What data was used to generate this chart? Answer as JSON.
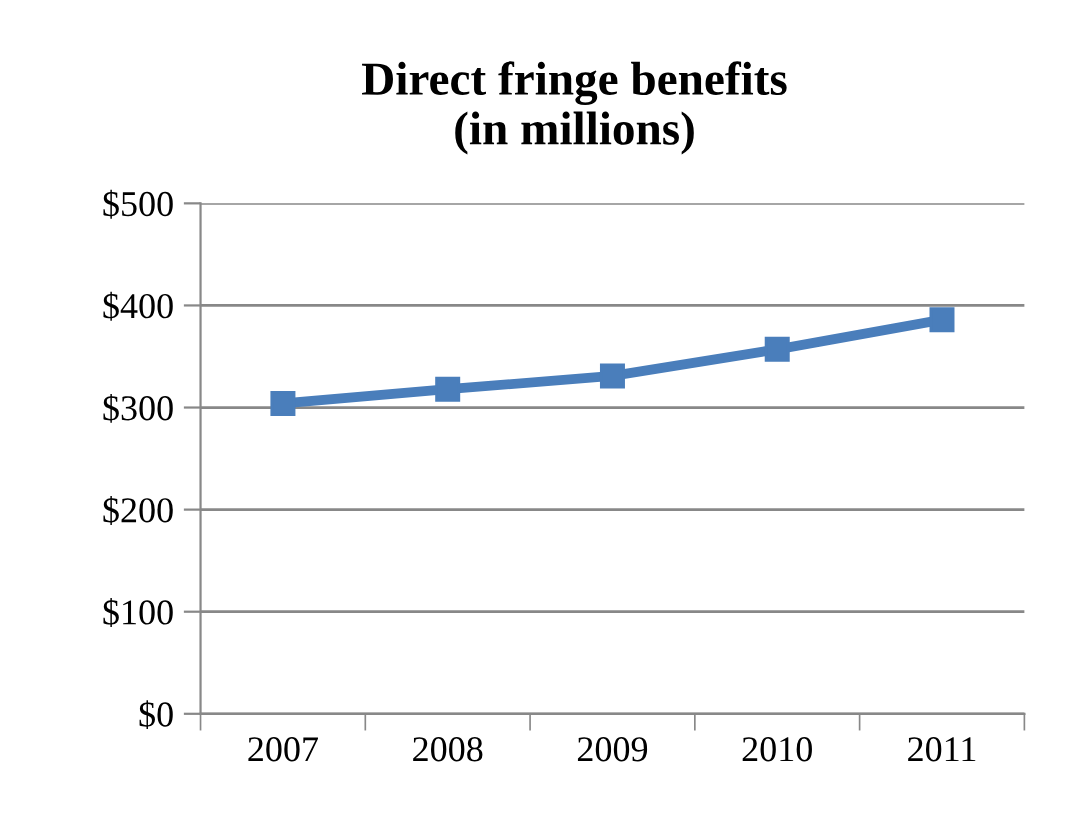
{
  "chart_data": {
    "type": "line",
    "title": "Direct fringe benefits\n(in millions)",
    "categories": [
      "2007",
      "2008",
      "2009",
      "2010",
      "2011"
    ],
    "series": [
      {
        "color": "#4a7ebb",
        "values": [
          304,
          318,
          331,
          357,
          386
        ]
      }
    ],
    "ylim": [
      0,
      500
    ],
    "yticks": [
      {
        "value": 0,
        "label": "$0"
      },
      {
        "value": 100,
        "label": "$100"
      },
      {
        "value": 200,
        "label": "$200"
      },
      {
        "value": 300,
        "label": "$300"
      },
      {
        "value": 400,
        "label": "$400"
      },
      {
        "value": 500,
        "label": "$500"
      }
    ],
    "grid": "y",
    "legend": false,
    "marker": "square",
    "line_style": "solid"
  }
}
